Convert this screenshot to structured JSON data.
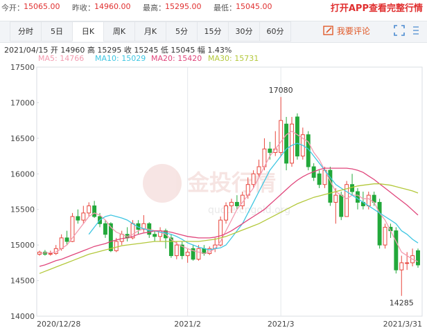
{
  "header": {
    "items": [
      {
        "label": "今开：",
        "value": "15065.00"
      },
      {
        "label": "昨收：",
        "value": "14960.00"
      },
      {
        "label": "最高：",
        "value": "15295.00"
      },
      {
        "label": "最低：",
        "value": "15045.00"
      }
    ],
    "app_link": "打开APP查看完整行情"
  },
  "tabs": {
    "items": [
      "分时",
      "5日",
      "日K",
      "周K",
      "月K",
      "5分",
      "15分",
      "30分",
      "60分"
    ],
    "selected": 2,
    "comment": "我要评论"
  },
  "info": "2021/04/15  开 14960  高 15295  收 15245  低 15045  幅 1.43%",
  "watermark": {
    "title": "金投行情",
    "url": "quote.cngold.org"
  },
  "chart_data": {
    "type": "candlestick",
    "categories": [
      "2020/12/28",
      null,
      null,
      null,
      null,
      null,
      null,
      null,
      null,
      null,
      null,
      null,
      null,
      null,
      null,
      null,
      null,
      null,
      null,
      null,
      null,
      null,
      null,
      null,
      null,
      null,
      null,
      "2021/2",
      null,
      null,
      null,
      null,
      null,
      null,
      null,
      null,
      null,
      null,
      null,
      null,
      null,
      null,
      null,
      null,
      "2021/3",
      null,
      null,
      null,
      null,
      null,
      null,
      null,
      null,
      null,
      null,
      null,
      null,
      null,
      null,
      null,
      null,
      null,
      null,
      null,
      null,
      null,
      null,
      null,
      null,
      "2021/3/31"
    ],
    "open": [
      14870,
      14900,
      14870,
      14880,
      14950,
      15100,
      15050,
      15400,
      15350,
      15450,
      15550,
      15400,
      15300,
      15300,
      14920,
      15050,
      15150,
      15100,
      15300,
      15220,
      15300,
      15150,
      15120,
      15200,
      15100,
      14850,
      15000,
      14850,
      14950,
      14800,
      14950,
      14880,
      14950,
      15000,
      15350,
      15550,
      15600,
      15550,
      15700,
      15850,
      16000,
      16100,
      16350,
      16300,
      16300,
      16700,
      16150,
      16800,
      16250,
      16550,
      16100,
      16000,
      15850,
      16050,
      15600,
      15700,
      15400,
      15850,
      15750,
      15600,
      15550,
      15700,
      15600,
      15000,
      15250,
      15200,
      14650,
      14750,
      14750,
      14920
    ],
    "close": [
      14900,
      14870,
      14880,
      14950,
      15100,
      15050,
      15400,
      15350,
      15450,
      15550,
      15400,
      15300,
      15150,
      14920,
      15050,
      15150,
      15100,
      15300,
      15220,
      15300,
      15150,
      15120,
      15200,
      15100,
      14850,
      15000,
      14850,
      14900,
      14800,
      14950,
      14880,
      14950,
      15000,
      15350,
      15550,
      15600,
      15550,
      15700,
      15850,
      16000,
      16100,
      16350,
      16300,
      16350,
      16750,
      16150,
      16700,
      16250,
      16550,
      16100,
      15950,
      15850,
      16050,
      15600,
      15700,
      15400,
      15850,
      15750,
      15600,
      15550,
      15700,
      15600,
      15000,
      15250,
      15200,
      14650,
      14750,
      14750,
      14850,
      14720
    ],
    "high": [
      14920,
      14930,
      14920,
      15000,
      15150,
      15200,
      15450,
      15500,
      15550,
      15600,
      15620,
      15450,
      15350,
      15320,
      15100,
      15200,
      15250,
      15350,
      15350,
      15420,
      15320,
      15200,
      15250,
      15230,
      15150,
      15050,
      15050,
      14950,
      15000,
      15000,
      15000,
      14980,
      15100,
      15400,
      15600,
      15650,
      15700,
      15750,
      15950,
      16050,
      16200,
      16500,
      16450,
      16600,
      17080,
      16800,
      16800,
      16850,
      16650,
      16600,
      16150,
      16050,
      16100,
      16100,
      15800,
      15750,
      15900,
      16000,
      15800,
      15750,
      15750,
      15750,
      15650,
      15300,
      15300,
      15250,
      14850,
      14900,
      14950,
      14950
    ],
    "low": [
      14850,
      14850,
      14850,
      14860,
      14920,
      15000,
      15040,
      15300,
      15300,
      15400,
      15380,
      15250,
      15100,
      14900,
      14900,
      15000,
      15050,
      15080,
      15150,
      15180,
      15100,
      15050,
      15050,
      14950,
      14820,
      14800,
      14800,
      14750,
      14780,
      14780,
      14850,
      14860,
      14900,
      14980,
      15300,
      15450,
      15500,
      15500,
      15650,
      15800,
      15950,
      16050,
      16200,
      16250,
      16250,
      16050,
      16100,
      16200,
      16200,
      16050,
      15900,
      15800,
      15800,
      15550,
      15300,
      15350,
      15400,
      15700,
      15500,
      15500,
      15500,
      15550,
      14950,
      14950,
      15100,
      14600,
      14285,
      14650,
      14700,
      14680
    ],
    "up_color": "#e8453c",
    "down_color": "#22a83a",
    "ylim": [
      14000,
      17500
    ],
    "yticks": [
      14000,
      14500,
      15000,
      15500,
      16000,
      16500,
      17000,
      17500
    ],
    "grid": false,
    "max_index": 44,
    "min_index": 66,
    "series": [
      {
        "name": "MA5: 14766",
        "color": "#f39bb0",
        "values": [
          14880,
          14890,
          14890,
          14900,
          14950,
          15000,
          15100,
          15200,
          15300,
          15400,
          15450,
          15420,
          15350,
          15250,
          15180,
          15150,
          15120,
          15150,
          15200,
          15230,
          15220,
          15200,
          15180,
          15150,
          15080,
          15020,
          14980,
          14950,
          14920,
          14900,
          14880,
          14900,
          14950,
          15050,
          15200,
          15350,
          15500,
          15600,
          15700,
          15800,
          15950,
          16100,
          16250,
          16350,
          16450,
          16550,
          16600,
          16550,
          16500,
          16450,
          16300,
          16200,
          16050,
          15900,
          15750,
          15700,
          15650,
          15700,
          15700,
          15650,
          15650,
          15600,
          15450,
          15350,
          15200,
          15050,
          14900,
          14850,
          14800,
          14766
        ]
      },
      {
        "name": "MA10: 15029",
        "color": "#3ec6e2",
        "values": [
          null,
          null,
          null,
          null,
          null,
          null,
          null,
          null,
          null,
          15150,
          15250,
          15350,
          15400,
          15420,
          15400,
          15380,
          15350,
          15300,
          15250,
          15230,
          15200,
          15200,
          15180,
          15170,
          15150,
          15120,
          15080,
          15030,
          15000,
          14970,
          14950,
          14930,
          14950,
          14960,
          15000,
          15100,
          15200,
          15300,
          15450,
          15600,
          15750,
          15900,
          16050,
          16150,
          16250,
          16350,
          16400,
          16430,
          16400,
          16350,
          16250,
          16150,
          16050,
          15950,
          15850,
          15800,
          15750,
          15700,
          15650,
          15600,
          15550,
          15500,
          15450,
          15400,
          15350,
          15300,
          15200,
          15150,
          15080,
          15029
        ]
      },
      {
        "name": "MA20: 15420",
        "color": "#e0457b",
        "values": [
          14700,
          14720,
          14750,
          14780,
          14800,
          14830,
          14860,
          14890,
          14920,
          14950,
          14980,
          15000,
          15020,
          15050,
          15070,
          15090,
          15100,
          15120,
          15150,
          15170,
          15180,
          15200,
          15200,
          15190,
          15180,
          15160,
          15140,
          15120,
          15110,
          15100,
          15100,
          15100,
          15110,
          15130,
          15160,
          15200,
          15250,
          15300,
          15350,
          15400,
          15450,
          15500,
          15570,
          15640,
          15710,
          15780,
          15850,
          15910,
          15960,
          16000,
          16030,
          16060,
          16080,
          16080,
          16080,
          16080,
          16080,
          16070,
          16050,
          16020,
          15970,
          15920,
          15860,
          15800,
          15740,
          15680,
          15620,
          15560,
          15490,
          15420
        ]
      },
      {
        "name": "MA30: 15731",
        "color": "#b3c83a",
        "values": [
          14600,
          14630,
          14660,
          14690,
          14720,
          14750,
          14780,
          14810,
          14840,
          14870,
          14890,
          14910,
          14930,
          14950,
          14970,
          14990,
          15000,
          15010,
          15020,
          15030,
          15040,
          15050,
          15050,
          15050,
          15050,
          15050,
          15050,
          15050,
          15050,
          15050,
          15060,
          15070,
          15080,
          15100,
          15120,
          15150,
          15180,
          15210,
          15240,
          15270,
          15300,
          15340,
          15380,
          15420,
          15460,
          15500,
          15540,
          15580,
          15610,
          15640,
          15670,
          15690,
          15710,
          15730,
          15750,
          15770,
          15790,
          15810,
          15830,
          15840,
          15850,
          15860,
          15860,
          15850,
          15840,
          15820,
          15800,
          15780,
          15760,
          15731
        ]
      }
    ]
  }
}
